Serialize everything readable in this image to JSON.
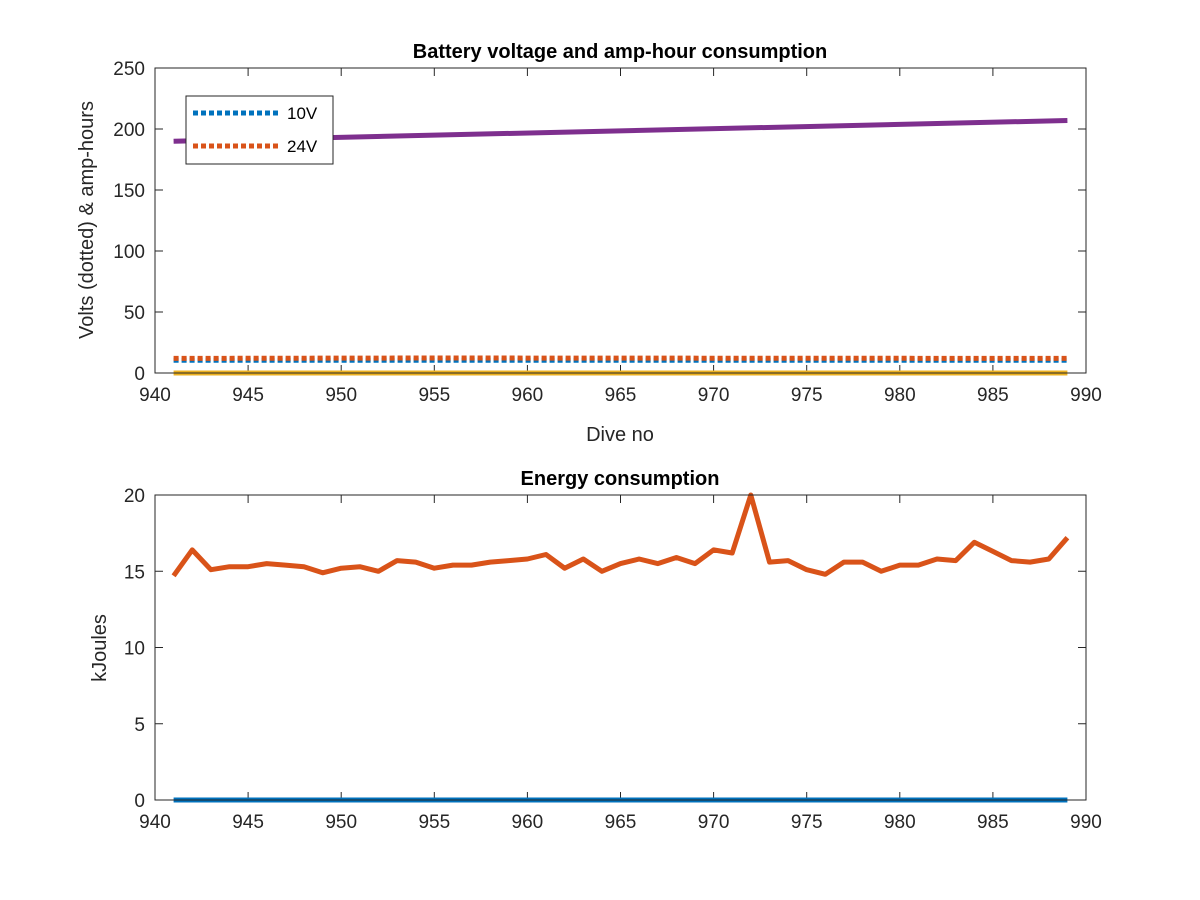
{
  "chart_data": [
    {
      "type": "line",
      "title": "Battery voltage and amp-hour consumption",
      "xlabel": "Dive no",
      "ylabel": "Volts (dotted) & amp-hours",
      "xlim": [
        940,
        990
      ],
      "ylim": [
        0,
        250
      ],
      "xticks": [
        "940",
        "945",
        "950",
        "955",
        "960",
        "965",
        "970",
        "975",
        "980",
        "985",
        "990"
      ],
      "yticks": [
        "0",
        "50",
        "100",
        "150",
        "200",
        "250"
      ],
      "legend": {
        "placement": "top-left",
        "entries": [
          "10V",
          "24V"
        ]
      },
      "grid": false,
      "series": [
        {
          "name": "10V",
          "style": "dotted",
          "color": "#0072BD",
          "x": [
            941,
            989
          ],
          "y": [
            10.5,
            10.5
          ]
        },
        {
          "name": "24V",
          "style": "dotted",
          "color": "#D95319",
          "x": [
            941,
            955,
            970,
            989
          ],
          "y": [
            12,
            12.3,
            12.1,
            12
          ]
        },
        {
          "style": "solid",
          "color": "#EDB120",
          "x": [
            941,
            989
          ],
          "y": [
            0,
            0
          ]
        },
        {
          "style": "solid",
          "color": "#7E2F8E",
          "x": [
            941,
            989
          ],
          "y": [
            190,
            207
          ]
        }
      ]
    },
    {
      "type": "line",
      "title": "Energy consumption",
      "xlabel": "",
      "ylabel": "kJoules",
      "xlim": [
        940,
        990
      ],
      "ylim": [
        0,
        20
      ],
      "xticks": [
        "940",
        "945",
        "950",
        "955",
        "960",
        "965",
        "970",
        "975",
        "980",
        "985",
        "990"
      ],
      "yticks": [
        "0",
        "5",
        "10",
        "15",
        "20"
      ],
      "grid": false,
      "series": [
        {
          "style": "solid",
          "color": "#0072BD",
          "x": [
            941,
            989
          ],
          "y": [
            0,
            0
          ]
        },
        {
          "style": "solid",
          "color": "#D95319",
          "x": [
            941,
            942,
            943,
            944,
            945,
            946,
            947,
            948,
            949,
            950,
            951,
            952,
            953,
            954,
            955,
            956,
            957,
            958,
            959,
            960,
            961,
            962,
            963,
            964,
            965,
            966,
            967,
            968,
            969,
            970,
            971,
            972,
            973,
            974,
            975,
            976,
            977,
            978,
            979,
            980,
            981,
            982,
            983,
            984,
            985,
            986,
            987,
            988,
            989
          ],
          "y": [
            14.7,
            16.4,
            15.1,
            15.3,
            15.3,
            15.5,
            15.4,
            15.3,
            14.9,
            15.2,
            15.3,
            15.0,
            15.7,
            15.6,
            15.2,
            15.4,
            15.4,
            15.6,
            15.7,
            15.8,
            16.1,
            15.2,
            15.8,
            15.0,
            15.5,
            15.8,
            15.5,
            15.9,
            15.5,
            16.4,
            16.2,
            20.0,
            15.6,
            15.7,
            15.1,
            14.8,
            15.6,
            15.6,
            15.0,
            15.4,
            15.4,
            15.8,
            15.7,
            16.9,
            16.3,
            15.7,
            15.6,
            15.8,
            17.2
          ]
        }
      ]
    }
  ]
}
